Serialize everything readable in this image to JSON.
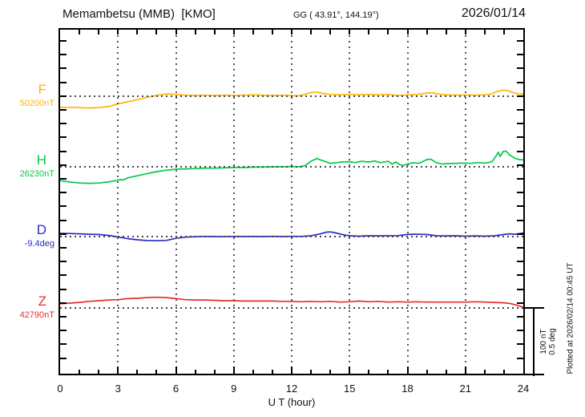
{
  "header": {
    "title": "Memambetsu (MMB)  [KMO]",
    "coordinates": "GG ( 43.91°, 144.19°)",
    "date": "2026/01/14"
  },
  "x_axis": {
    "label": "U T (hour)"
  },
  "scale_bar": {
    "line1": "100 nT",
    "line2": "0.5 deg"
  },
  "footer_note": "Plotted at 2026/02/14 00:45 UT",
  "chart_data": {
    "type": "line",
    "title": "Memambetsu (MMB) [KMO] magnetogram 2026/01/14",
    "xlabel": "U T (hour)",
    "x_range": [
      0,
      24
    ],
    "x_ticks": [
      0,
      3,
      6,
      9,
      12,
      15,
      18,
      21,
      24
    ],
    "grid": "vertical dotted lines every 3 h; dotted horizontal baseline per component",
    "legend_position": "left margin labels",
    "scale_bar": {
      "nT_per_bar": 100,
      "deg_per_bar": 0.5
    },
    "points_format": "[hour_UT, delta_from_baseline_in_unit]",
    "series": [
      {
        "name": "F",
        "unit": "nT",
        "color": "#FFB400",
        "baseline_value": 50200,
        "baseline_label": "50200nT",
        "points": [
          [
            0,
            -16
          ],
          [
            0.5,
            -16
          ],
          [
            1,
            -16.5
          ],
          [
            1.5,
            -17
          ],
          [
            2,
            -16.5
          ],
          [
            2.5,
            -15
          ],
          [
            3,
            -11
          ],
          [
            3.5,
            -8
          ],
          [
            4,
            -5
          ],
          [
            4.5,
            -1.5
          ],
          [
            5,
            1
          ],
          [
            5.3,
            2.5
          ],
          [
            5.6,
            3.5
          ],
          [
            6,
            2.5
          ],
          [
            6.5,
            1.5
          ],
          [
            7,
            1
          ],
          [
            7.5,
            1.5
          ],
          [
            8,
            1
          ],
          [
            8.5,
            1.5
          ],
          [
            9,
            1
          ],
          [
            9.5,
            1.5
          ],
          [
            10,
            2
          ],
          [
            10.5,
            1.5
          ],
          [
            11,
            1
          ],
          [
            11.5,
            1.5
          ],
          [
            12,
            1
          ],
          [
            12.3,
            0.5
          ],
          [
            12.6,
            2
          ],
          [
            13,
            5.5
          ],
          [
            13.3,
            6
          ],
          [
            13.6,
            4
          ],
          [
            14,
            2.5
          ],
          [
            14.5,
            2
          ],
          [
            15,
            2.5
          ],
          [
            15.5,
            2
          ],
          [
            16,
            2.5
          ],
          [
            16.5,
            2
          ],
          [
            17,
            2.5
          ],
          [
            17.5,
            1
          ],
          [
            18,
            2
          ],
          [
            18.5,
            2.5
          ],
          [
            19,
            4.5
          ],
          [
            19.3,
            5
          ],
          [
            19.6,
            3
          ],
          [
            20,
            2
          ],
          [
            20.5,
            1.5
          ],
          [
            21,
            2
          ],
          [
            21.5,
            1.5
          ],
          [
            22,
            2
          ],
          [
            22.3,
            3
          ],
          [
            22.6,
            6.5
          ],
          [
            23,
            9
          ],
          [
            23.2,
            8
          ],
          [
            23.5,
            5
          ],
          [
            23.7,
            3.5
          ],
          [
            24,
            3
          ]
        ]
      },
      {
        "name": "H",
        "unit": "nT",
        "color": "#00CC44",
        "baseline_value": 26230,
        "baseline_label": "26230nT",
        "points": [
          [
            0,
            -20
          ],
          [
            0.5,
            -22
          ],
          [
            1,
            -23.5
          ],
          [
            1.5,
            -24
          ],
          [
            2,
            -23.5
          ],
          [
            2.5,
            -22
          ],
          [
            2.9,
            -20
          ],
          [
            3.1,
            -18.5
          ],
          [
            3.3,
            -19
          ],
          [
            3.5,
            -16
          ],
          [
            4,
            -13
          ],
          [
            4.5,
            -10
          ],
          [
            5,
            -7
          ],
          [
            5.5,
            -5
          ],
          [
            6,
            -3.5
          ],
          [
            6.5,
            -3
          ],
          [
            7,
            -2.5
          ],
          [
            7.5,
            -2
          ],
          [
            8,
            -2
          ],
          [
            8.5,
            -1.5
          ],
          [
            9,
            -1
          ],
          [
            9.5,
            -1
          ],
          [
            10,
            -0.5
          ],
          [
            10.5,
            -0.5
          ],
          [
            11,
            0
          ],
          [
            11.5,
            0
          ],
          [
            12,
            0.5
          ],
          [
            12.4,
            0
          ],
          [
            12.7,
            2
          ],
          [
            13,
            8
          ],
          [
            13.3,
            12
          ],
          [
            13.6,
            9
          ],
          [
            14,
            5
          ],
          [
            14.3,
            6
          ],
          [
            14.6,
            7
          ],
          [
            15,
            7.5
          ],
          [
            15.3,
            6
          ],
          [
            15.6,
            8
          ],
          [
            16,
            7
          ],
          [
            16.3,
            8.5
          ],
          [
            16.6,
            6
          ],
          [
            17,
            8
          ],
          [
            17.2,
            4
          ],
          [
            17.4,
            7
          ],
          [
            17.6,
            3
          ],
          [
            17.8,
            2
          ],
          [
            18,
            4
          ],
          [
            18.3,
            6
          ],
          [
            18.6,
            5
          ],
          [
            19,
            10.5
          ],
          [
            19.2,
            11
          ],
          [
            19.5,
            6
          ],
          [
            19.8,
            4
          ],
          [
            20,
            4.5
          ],
          [
            20.5,
            5
          ],
          [
            21,
            5.5
          ],
          [
            21.3,
            5
          ],
          [
            21.6,
            6
          ],
          [
            22,
            5.5
          ],
          [
            22.2,
            6
          ],
          [
            22.4,
            8
          ],
          [
            22.55,
            14
          ],
          [
            22.7,
            21
          ],
          [
            22.8,
            15
          ],
          [
            22.95,
            22
          ],
          [
            23.1,
            23
          ],
          [
            23.3,
            17
          ],
          [
            23.6,
            12
          ],
          [
            23.8,
            10.5
          ],
          [
            24,
            10
          ]
        ]
      },
      {
        "name": "D",
        "unit": "deg",
        "color": "#2B2BC8",
        "baseline_value": -9.4,
        "baseline_label": "-9.4deg",
        "points": [
          [
            0,
            0.023
          ],
          [
            0.5,
            0.022
          ],
          [
            1,
            0.02
          ],
          [
            1.5,
            0.017
          ],
          [
            2,
            0.015
          ],
          [
            2.5,
            0.009
          ],
          [
            3,
            -0.003
          ],
          [
            3.5,
            -0.015
          ],
          [
            4,
            -0.023
          ],
          [
            4.5,
            -0.029
          ],
          [
            5,
            -0.03
          ],
          [
            5.5,
            -0.028
          ],
          [
            6,
            -0.013
          ],
          [
            6.5,
            -0.004
          ],
          [
            7,
            -0.001
          ],
          [
            7.5,
            0.001
          ],
          [
            8,
            0
          ],
          [
            8.5,
            -0.001
          ],
          [
            9,
            0.001
          ],
          [
            9.5,
            0
          ],
          [
            10,
            0.001
          ],
          [
            10.5,
            0
          ],
          [
            11,
            0.002
          ],
          [
            11.5,
            0
          ],
          [
            12,
            0.002
          ],
          [
            12.5,
            0.001
          ],
          [
            13,
            0.006
          ],
          [
            13.5,
            0.02
          ],
          [
            13.8,
            0.032
          ],
          [
            14,
            0.034
          ],
          [
            14.3,
            0.026
          ],
          [
            14.7,
            0.012
          ],
          [
            15,
            0.006
          ],
          [
            15.5,
            0.003
          ],
          [
            16,
            0.006
          ],
          [
            16.5,
            0.005
          ],
          [
            17,
            0.006
          ],
          [
            17.5,
            0.007
          ],
          [
            18,
            0.015
          ],
          [
            18.3,
            0.017
          ],
          [
            18.7,
            0.016
          ],
          [
            19,
            0.015
          ],
          [
            19.5,
            0.006
          ],
          [
            20,
            0.005
          ],
          [
            20.5,
            0.006
          ],
          [
            21,
            0.003
          ],
          [
            21.5,
            0.005
          ],
          [
            22,
            0.003
          ],
          [
            22.5,
            0.006
          ],
          [
            23,
            0.015
          ],
          [
            23.3,
            0.02
          ],
          [
            23.6,
            0.017
          ],
          [
            24,
            0.026
          ]
        ]
      },
      {
        "name": "Z",
        "unit": "nT",
        "color": "#E63030",
        "baseline_value": 42790,
        "baseline_label": "42790nT",
        "points": [
          [
            0,
            6
          ],
          [
            0.5,
            7
          ],
          [
            1,
            8
          ],
          [
            1.5,
            9.5
          ],
          [
            2,
            10.5
          ],
          [
            2.5,
            11.5
          ],
          [
            3,
            12
          ],
          [
            3.5,
            13.5
          ],
          [
            4,
            14
          ],
          [
            4.5,
            15
          ],
          [
            5,
            15.5
          ],
          [
            5.5,
            15
          ],
          [
            6,
            13.5
          ],
          [
            6.5,
            12
          ],
          [
            7,
            11.5
          ],
          [
            7.5,
            11.5
          ],
          [
            8,
            11
          ],
          [
            8.5,
            10.5
          ],
          [
            9,
            10.5
          ],
          [
            9.5,
            10
          ],
          [
            10,
            10
          ],
          [
            10.5,
            10
          ],
          [
            11,
            10
          ],
          [
            11.5,
            9.5
          ],
          [
            12,
            9.5
          ],
          [
            12.5,
            9
          ],
          [
            13,
            9.5
          ],
          [
            13.5,
            9
          ],
          [
            14,
            9.5
          ],
          [
            14.5,
            8.5
          ],
          [
            15,
            9
          ],
          [
            15.5,
            10
          ],
          [
            16,
            9
          ],
          [
            16.5,
            9.5
          ],
          [
            17,
            8.5
          ],
          [
            17.5,
            9
          ],
          [
            18,
            8.5
          ],
          [
            18.5,
            9
          ],
          [
            19,
            8.5
          ],
          [
            19.5,
            8.5
          ],
          [
            20,
            8.5
          ],
          [
            20.5,
            8.5
          ],
          [
            21,
            8.5
          ],
          [
            21.5,
            9
          ],
          [
            22,
            8.5
          ],
          [
            22.5,
            8
          ],
          [
            23,
            7.5
          ],
          [
            23.3,
            6.5
          ],
          [
            23.6,
            4.5
          ],
          [
            24,
            1
          ]
        ]
      }
    ]
  }
}
